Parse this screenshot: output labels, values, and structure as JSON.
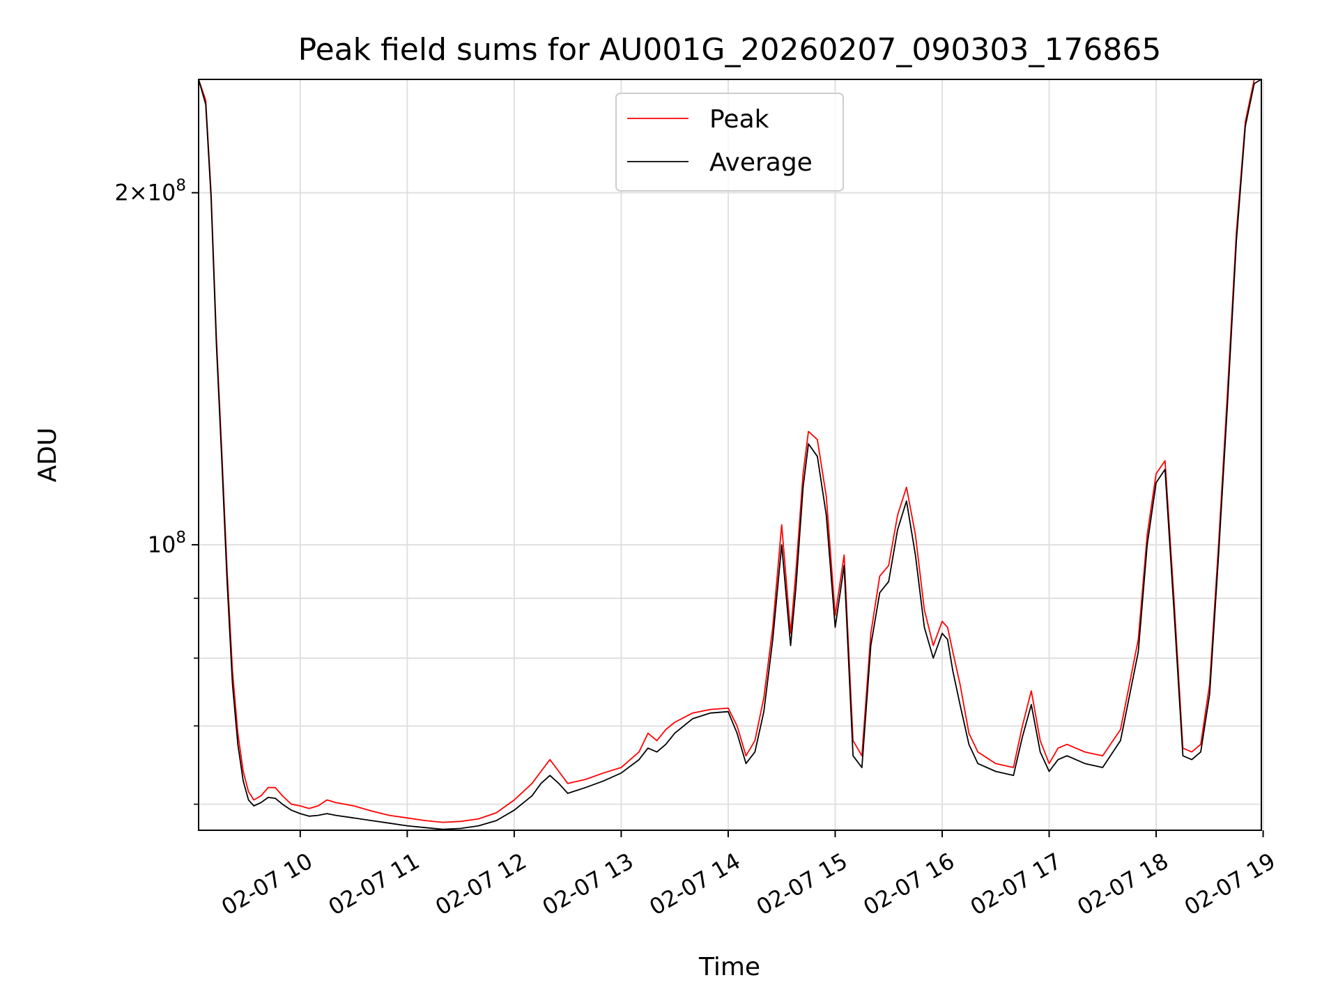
{
  "chart_data": {
    "type": "line",
    "title": "Peak field sums for AU001G_20260207_090303_176865",
    "xlabel": "Time",
    "ylabel": "ADU",
    "x_scale": "time",
    "y_scale": "log",
    "xlim": [
      "2026-02-07 09:03",
      "2026-02-07 18:59"
    ],
    "ylim": [
      57000000,
      250000000
    ],
    "grid": true,
    "legend": {
      "placement": "upper center"
    },
    "x_ticks": [
      {
        "value": "2026-02-07 10:00",
        "label": "02-07 10"
      },
      {
        "value": "2026-02-07 11:00",
        "label": "02-07 11"
      },
      {
        "value": "2026-02-07 12:00",
        "label": "02-07 12"
      },
      {
        "value": "2026-02-07 13:00",
        "label": "02-07 13"
      },
      {
        "value": "2026-02-07 14:00",
        "label": "02-07 14"
      },
      {
        "value": "2026-02-07 15:00",
        "label": "02-07 15"
      },
      {
        "value": "2026-02-07 16:00",
        "label": "02-07 16"
      },
      {
        "value": "2026-02-07 17:00",
        "label": "02-07 17"
      },
      {
        "value": "2026-02-07 18:00",
        "label": "02-07 18"
      },
      {
        "value": "2026-02-07 19:00",
        "label": "02-07 19"
      }
    ],
    "y_major_ticks": [
      {
        "value": 100000000,
        "base": "10",
        "exp": "8"
      },
      {
        "value": 200000000,
        "mantissa": "2",
        "base": "10",
        "exp": "8"
      }
    ],
    "y_minor_ticks": [
      60000000,
      70000000,
      80000000,
      90000000
    ],
    "series": [
      {
        "name": "Peak",
        "color": "#ff0000",
        "x": [
          "09:03",
          "09:07",
          "09:10",
          "09:13",
          "09:16",
          "09:19",
          "09:22",
          "09:25",
          "09:28",
          "09:31",
          "09:34",
          "09:38",
          "09:42",
          "09:46",
          "09:50",
          "09:55",
          "10:00",
          "10:05",
          "10:10",
          "10:15",
          "10:20",
          "10:30",
          "10:40",
          "10:50",
          "11:00",
          "11:10",
          "11:20",
          "11:30",
          "11:40",
          "11:50",
          "12:00",
          "12:10",
          "12:15",
          "12:20",
          "12:25",
          "12:30",
          "12:40",
          "12:50",
          "13:00",
          "13:10",
          "13:15",
          "13:20",
          "13:25",
          "13:30",
          "13:40",
          "13:50",
          "14:00",
          "14:05",
          "14:10",
          "14:15",
          "14:20",
          "14:25",
          "14:30",
          "14:35",
          "14:38",
          "14:42",
          "14:45",
          "14:50",
          "14:55",
          "15:00",
          "15:05",
          "15:10",
          "15:15",
          "15:20",
          "15:25",
          "15:30",
          "15:35",
          "15:40",
          "15:45",
          "15:50",
          "15:55",
          "16:00",
          "16:03",
          "16:06",
          "16:10",
          "16:15",
          "16:20",
          "16:30",
          "16:40",
          "16:45",
          "16:50",
          "16:55",
          "17:00",
          "17:05",
          "17:10",
          "17:20",
          "17:30",
          "17:40",
          "17:50",
          "17:55",
          "18:00",
          "18:05",
          "18:10",
          "18:15",
          "18:20",
          "18:25",
          "18:30",
          "18:35",
          "18:40",
          "18:45",
          "18:50",
          "18:55",
          "18:59"
        ],
        "y": [
          250000000,
          240000000,
          200000000,
          150000000,
          120000000,
          95000000,
          78000000,
          69000000,
          64000000,
          61500000,
          60500000,
          61000000,
          62000000,
          62000000,
          61000000,
          60000000,
          59800000,
          59500000,
          59800000,
          60500000,
          60200000,
          59800000,
          59200000,
          58700000,
          58400000,
          58100000,
          57900000,
          58000000,
          58300000,
          59000000,
          60500000,
          62500000,
          64000000,
          65500000,
          64000000,
          62500000,
          63000000,
          63800000,
          64500000,
          66500000,
          69000000,
          68000000,
          69500000,
          70500000,
          71800000,
          72300000,
          72500000,
          70000000,
          66000000,
          68000000,
          74000000,
          85000000,
          104000000,
          84000000,
          95000000,
          115000000,
          125000000,
          123000000,
          110000000,
          87000000,
          98000000,
          68000000,
          66000000,
          84000000,
          94000000,
          96000000,
          106000000,
          112000000,
          102000000,
          88000000,
          82000000,
          86000000,
          85000000,
          81000000,
          76000000,
          69000000,
          66500000,
          65000000,
          64500000,
          70000000,
          75000000,
          68000000,
          65000000,
          67000000,
          67500000,
          66500000,
          66000000,
          69500000,
          83000000,
          102000000,
          115000000,
          118000000,
          90000000,
          67000000,
          66500000,
          67500000,
          76000000,
          100000000,
          135000000,
          185000000,
          230000000,
          250000000,
          250000000
        ]
      },
      {
        "name": "Average",
        "color": "#000000",
        "x": [
          "09:03",
          "09:07",
          "09:10",
          "09:13",
          "09:16",
          "09:19",
          "09:22",
          "09:25",
          "09:28",
          "09:31",
          "09:34",
          "09:38",
          "09:42",
          "09:46",
          "09:50",
          "09:55",
          "10:00",
          "10:05",
          "10:10",
          "10:15",
          "10:20",
          "10:30",
          "10:40",
          "10:50",
          "11:00",
          "11:10",
          "11:20",
          "11:30",
          "11:40",
          "11:50",
          "12:00",
          "12:10",
          "12:15",
          "12:20",
          "12:25",
          "12:30",
          "12:40",
          "12:50",
          "13:00",
          "13:10",
          "13:15",
          "13:20",
          "13:25",
          "13:30",
          "13:40",
          "13:50",
          "14:00",
          "14:05",
          "14:10",
          "14:15",
          "14:20",
          "14:25",
          "14:30",
          "14:35",
          "14:38",
          "14:42",
          "14:45",
          "14:50",
          "14:55",
          "15:00",
          "15:05",
          "15:10",
          "15:15",
          "15:20",
          "15:25",
          "15:30",
          "15:35",
          "15:40",
          "15:45",
          "15:50",
          "15:55",
          "16:00",
          "16:03",
          "16:06",
          "16:10",
          "16:15",
          "16:20",
          "16:30",
          "16:40",
          "16:45",
          "16:50",
          "16:55",
          "17:00",
          "17:05",
          "17:10",
          "17:20",
          "17:30",
          "17:40",
          "17:50",
          "17:55",
          "18:00",
          "18:05",
          "18:10",
          "18:15",
          "18:20",
          "18:25",
          "18:30",
          "18:35",
          "18:40",
          "18:45",
          "18:50",
          "18:55",
          "18:59"
        ],
        "y": [
          250000000,
          238000000,
          198000000,
          148000000,
          118000000,
          93000000,
          76000000,
          67500000,
          62800000,
          60500000,
          59800000,
          60200000,
          60800000,
          60700000,
          60000000,
          59300000,
          58900000,
          58600000,
          58700000,
          58900000,
          58700000,
          58400000,
          58100000,
          57800000,
          57500000,
          57300000,
          57100000,
          57200000,
          57500000,
          58100000,
          59300000,
          61000000,
          62500000,
          63500000,
          62500000,
          61300000,
          62000000,
          62800000,
          63800000,
          65500000,
          67000000,
          66500000,
          67500000,
          69000000,
          71000000,
          71800000,
          72000000,
          69000000,
          65000000,
          66500000,
          72000000,
          83000000,
          100000000,
          82000000,
          92000000,
          112000000,
          122000000,
          119000000,
          106000000,
          85000000,
          96000000,
          66000000,
          64500000,
          82000000,
          91000000,
          93000000,
          103000000,
          109000000,
          98000000,
          85000000,
          80000000,
          84000000,
          83000000,
          78000000,
          73000000,
          67500000,
          65000000,
          64000000,
          63500000,
          68500000,
          73000000,
          66500000,
          64000000,
          65500000,
          66000000,
          65000000,
          64500000,
          68000000,
          81000000,
          100000000,
          113000000,
          116000000,
          88000000,
          66000000,
          65500000,
          66500000,
          74500000,
          98000000,
          132000000,
          182000000,
          228000000,
          248000000,
          250000000
        ]
      }
    ]
  }
}
